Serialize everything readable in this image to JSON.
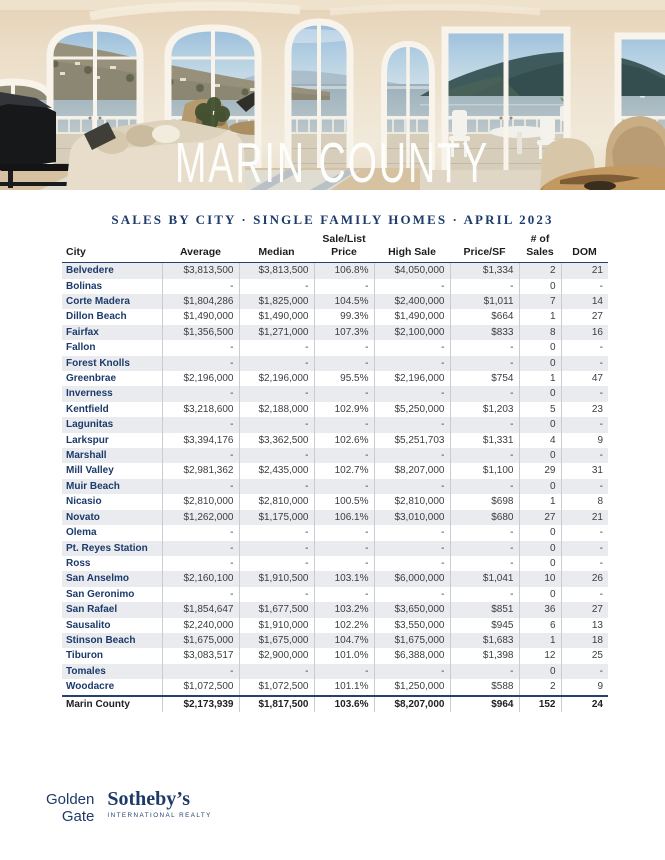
{
  "hero": {
    "title": "MARIN COUNTY"
  },
  "subtitle": "SALES BY CITY · SINGLE FAMILY HOMES · APRIL 2023",
  "table": {
    "columns": [
      [
        "City"
      ],
      [
        "Average"
      ],
      [
        "Median"
      ],
      [
        "Sale/List",
        "Price"
      ],
      [
        "High Sale"
      ],
      [
        "Price/SF"
      ],
      [
        "# of",
        "Sales"
      ],
      [
        "DOM"
      ]
    ],
    "rows": [
      [
        "Belvedere",
        "$3,813,500",
        "$3,813,500",
        "106.8%",
        "$4,050,000",
        "$1,334",
        "2",
        "21"
      ],
      [
        "Bolinas",
        "-",
        "-",
        "-",
        "-",
        "-",
        "0",
        "-"
      ],
      [
        "Corte Madera",
        "$1,804,286",
        "$1,825,000",
        "104.5%",
        "$2,400,000",
        "$1,011",
        "7",
        "14"
      ],
      [
        "Dillon Beach",
        "$1,490,000",
        "$1,490,000",
        "99.3%",
        "$1,490,000",
        "$664",
        "1",
        "27"
      ],
      [
        "Fairfax",
        "$1,356,500",
        "$1,271,000",
        "107.3%",
        "$2,100,000",
        "$833",
        "8",
        "16"
      ],
      [
        "Fallon",
        "-",
        "-",
        "-",
        "-",
        "-",
        "0",
        "-"
      ],
      [
        "Forest Knolls",
        "-",
        "-",
        "-",
        "-",
        "-",
        "0",
        "-"
      ],
      [
        "Greenbrae",
        "$2,196,000",
        "$2,196,000",
        "95.5%",
        "$2,196,000",
        "$754",
        "1",
        "47"
      ],
      [
        "Inverness",
        "-",
        "-",
        "-",
        "-",
        "-",
        "0",
        "-"
      ],
      [
        "Kentfield",
        "$3,218,600",
        "$2,188,000",
        "102.9%",
        "$5,250,000",
        "$1,203",
        "5",
        "23"
      ],
      [
        "Lagunitas",
        "-",
        "-",
        "-",
        "-",
        "-",
        "0",
        "-"
      ],
      [
        "Larkspur",
        "$3,394,176",
        "$3,362,500",
        "102.6%",
        "$5,251,703",
        "$1,331",
        "4",
        "9"
      ],
      [
        "Marshall",
        "-",
        "-",
        "-",
        "-",
        "-",
        "0",
        "-"
      ],
      [
        "Mill Valley",
        "$2,981,362",
        "$2,435,000",
        "102.7%",
        "$8,207,000",
        "$1,100",
        "29",
        "31"
      ],
      [
        "Muir Beach",
        "-",
        "-",
        "-",
        "-",
        "-",
        "0",
        "-"
      ],
      [
        "Nicasio",
        "$2,810,000",
        "$2,810,000",
        "100.5%",
        "$2,810,000",
        "$698",
        "1",
        "8"
      ],
      [
        "Novato",
        "$1,262,000",
        "$1,175,000",
        "106.1%",
        "$3,010,000",
        "$680",
        "27",
        "21"
      ],
      [
        "Olema",
        "-",
        "-",
        "-",
        "-",
        "-",
        "0",
        "-"
      ],
      [
        "Pt. Reyes Station",
        "-",
        "-",
        "-",
        "-",
        "-",
        "0",
        "-"
      ],
      [
        "Ross",
        "-",
        "-",
        "-",
        "-",
        "-",
        "0",
        "-"
      ],
      [
        "San Anselmo",
        "$2,160,100",
        "$1,910,500",
        "103.1%",
        "$6,000,000",
        "$1,041",
        "10",
        "26"
      ],
      [
        "San Geronimo",
        "-",
        "-",
        "-",
        "-",
        "-",
        "0",
        "-"
      ],
      [
        "San Rafael",
        "$1,854,647",
        "$1,677,500",
        "103.2%",
        "$3,650,000",
        "$851",
        "36",
        "27"
      ],
      [
        "Sausalito",
        "$2,240,000",
        "$1,910,000",
        "102.2%",
        "$3,550,000",
        "$945",
        "6",
        "13"
      ],
      [
        "Stinson Beach",
        "$1,675,000",
        "$1,675,000",
        "104.7%",
        "$1,675,000",
        "$1,683",
        "1",
        "18"
      ],
      [
        "Tiburon",
        "$3,083,517",
        "$2,900,000",
        "101.0%",
        "$6,388,000",
        "$1,398",
        "12",
        "25"
      ],
      [
        "Tomales",
        "-",
        "-",
        "-",
        "-",
        "-",
        "0",
        "-"
      ],
      [
        "Woodacre",
        "$1,072,500",
        "$1,072,500",
        "101.1%",
        "$1,250,000",
        "$588",
        "2",
        "9"
      ]
    ],
    "total": [
      "Marin County",
      "$2,173,939",
      "$1,817,500",
      "103.6%",
      "$8,207,000",
      "$964",
      "152",
      "24"
    ]
  },
  "footer": {
    "brand_line1": "Golden",
    "brand_line2": "Gate",
    "brand_name": "Sotheby’s",
    "brand_tagline": "INTERNATIONAL REALTY"
  },
  "colors": {
    "brand_navy": "#1e3a68",
    "city_text": "#1c3a6b",
    "header_rule": "#27416e",
    "stripe": "#e9ebee",
    "column_border": "#c9ccd1",
    "value_text": "#3c3d40",
    "subtitle_text": "#1e3c6b",
    "hero_title": "#fdfdfc"
  }
}
